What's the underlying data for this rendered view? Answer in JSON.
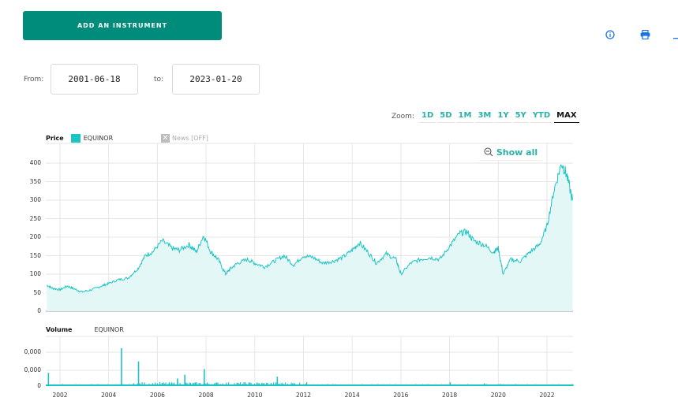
{
  "toolbar": {
    "add_button_label": "ADD AN INSTRUMENT",
    "icons": [
      "info-icon",
      "print-icon",
      "download-icon"
    ]
  },
  "date_range": {
    "from_label": "From:",
    "from_value": "2001-06-18",
    "to_label": "to:",
    "to_value": "2023-01-20"
  },
  "zoom": {
    "label": "Zoom:",
    "options": [
      "1D",
      "5D",
      "1M",
      "3M",
      "1Y",
      "5Y",
      "YTD",
      "MAX"
    ],
    "active": "MAX"
  },
  "price_panel": {
    "title": "Price",
    "series_name": "EQUINOR",
    "news_toggle": "News [OFF]",
    "show_all": "Show all"
  },
  "volume_panel": {
    "title": "Volume",
    "series_name": "EQUINOR"
  },
  "colors": {
    "accent": "#008c7a",
    "series": "#1ec3c3",
    "fill": "#e3f7f7",
    "link": "#2ab0a6",
    "icon": "#1a73e8"
  },
  "chart_data": [
    {
      "type": "area",
      "title": "Price",
      "legend": [
        "EQUINOR"
      ],
      "xlabel": "",
      "ylabel": "",
      "x_ticks": [
        "2002",
        "2004",
        "2006",
        "2008",
        "2010",
        "2012",
        "2014",
        "2016",
        "2018",
        "2020",
        "2022"
      ],
      "y_ticks": [
        0,
        50,
        100,
        150,
        200,
        250,
        300,
        350,
        400
      ],
      "ylim": [
        0,
        400
      ],
      "grid": true,
      "x": [
        2001.46,
        2001.7,
        2002.0,
        2002.3,
        2002.6,
        2002.9,
        2003.3,
        2003.7,
        2004.0,
        2004.4,
        2004.8,
        2005.2,
        2005.5,
        2005.8,
        2006.2,
        2006.6,
        2006.9,
        2007.3,
        2007.6,
        2007.9,
        2008.2,
        2008.5,
        2008.8,
        2009.0,
        2009.3,
        2009.7,
        2010.0,
        2010.4,
        2010.8,
        2011.2,
        2011.6,
        2012.0,
        2012.4,
        2012.8,
        2013.2,
        2013.6,
        2014.0,
        2014.3,
        2014.7,
        2015.0,
        2015.4,
        2015.8,
        2016.0,
        2016.4,
        2016.8,
        2017.2,
        2017.6,
        2018.0,
        2018.4,
        2018.7,
        2019.0,
        2019.4,
        2019.8,
        2020.0,
        2020.2,
        2020.5,
        2020.9,
        2021.3,
        2021.7,
        2022.0,
        2022.3,
        2022.6,
        2022.8,
        2023.05
      ],
      "values": [
        70,
        62,
        58,
        68,
        60,
        52,
        58,
        68,
        75,
        85,
        90,
        115,
        150,
        160,
        190,
        170,
        165,
        180,
        160,
        205,
        160,
        140,
        100,
        115,
        130,
        140,
        130,
        120,
        135,
        150,
        125,
        150,
        145,
        130,
        135,
        145,
        165,
        185,
        155,
        130,
        155,
        140,
        100,
        130,
        140,
        145,
        140,
        175,
        210,
        215,
        190,
        180,
        160,
        170,
        100,
        140,
        135,
        160,
        180,
        230,
        330,
        400,
        370,
        300
      ]
    },
    {
      "type": "bar",
      "title": "Volume",
      "legend": [
        "EQUINOR"
      ],
      "x_ticks": [
        "2002",
        "2004",
        "2006",
        "2008",
        "2010",
        "2012",
        "2014",
        "2016",
        "2018",
        "2020",
        "2022"
      ],
      "y_ticks": [
        "0",
        "0,000",
        "0,000"
      ],
      "grid": true,
      "spikes": [
        {
          "x": 2001.5,
          "rel_height": 0.35
        },
        {
          "x": 2004.5,
          "rel_height": 1.0
        },
        {
          "x": 2005.2,
          "rel_height": 0.65
        },
        {
          "x": 2006.8,
          "rel_height": 0.2
        },
        {
          "x": 2007.1,
          "rel_height": 0.3
        },
        {
          "x": 2007.9,
          "rel_height": 0.45
        },
        {
          "x": 2010.9,
          "rel_height": 0.25
        },
        {
          "x": 2018.0,
          "rel_height": 0.1
        },
        {
          "x": 2019.4,
          "rel_height": 0.07
        }
      ]
    }
  ]
}
